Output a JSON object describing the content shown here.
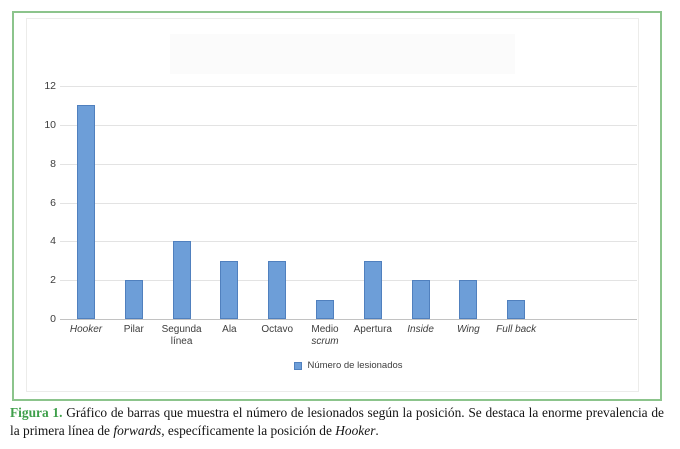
{
  "chart_data": {
    "type": "bar",
    "title": "",
    "categories": [
      "Hooker",
      "Pilar",
      "Segunda línea",
      "Ala",
      "Octavo",
      "Medio scrum",
      "Apertura",
      "Inside",
      "Wing",
      "Full back"
    ],
    "values": [
      11,
      2,
      4,
      3,
      3,
      1,
      3,
      2,
      2,
      1
    ],
    "xlabel": "",
    "ylabel": "",
    "ylim": [
      0,
      12
    ],
    "yticks": [
      0,
      2,
      4,
      6,
      8,
      10,
      12
    ],
    "grid": true,
    "legend_position": "bottom",
    "legend": [
      {
        "label": "Número de lesionados",
        "color": "#6D9ED8"
      }
    ],
    "category_labels": [
      {
        "lines": [
          {
            "text": "Hooker",
            "italic": true
          }
        ]
      },
      {
        "lines": [
          {
            "text": "Pilar",
            "italic": false
          }
        ]
      },
      {
        "lines": [
          {
            "text": "Segunda",
            "italic": false
          },
          {
            "text": "línea",
            "italic": false
          }
        ]
      },
      {
        "lines": [
          {
            "text": "Ala",
            "italic": false
          }
        ]
      },
      {
        "lines": [
          {
            "text": "Octavo",
            "italic": false
          }
        ]
      },
      {
        "lines": [
          {
            "text": "Medio",
            "italic": false
          },
          {
            "text": "scrum",
            "italic": true
          }
        ]
      },
      {
        "lines": [
          {
            "text": "Apertura",
            "italic": false
          }
        ]
      },
      {
        "lines": [
          {
            "text": "Inside",
            "italic": true
          }
        ]
      },
      {
        "lines": [
          {
            "text": "Wing",
            "italic": true
          }
        ]
      },
      {
        "lines": [
          {
            "text": "Full back",
            "italic": true
          }
        ]
      }
    ],
    "colors": {
      "bar_fill": "#6D9ED8",
      "bar_border": "#5080BE",
      "gridline": "#E3E3E3",
      "axis_line": "#C2C2C2",
      "tick_text": "#3D3D3D",
      "frame_green": "#8CC48C",
      "caption_green": "#3E9F4A"
    }
  },
  "caption": {
    "parts": [
      {
        "text": "Figura 1.",
        "style": "label"
      },
      {
        "text": " Gráfico de barras que muestra el número de lesionados según la posición. Se destaca la enorme prevalencia de la primera línea de ",
        "style": "normal"
      },
      {
        "text": "forwards",
        "style": "italic"
      },
      {
        "text": ", específicamente la posición de ",
        "style": "normal"
      },
      {
        "text": "Hooker",
        "style": "italic"
      },
      {
        "text": ".",
        "style": "normal"
      }
    ]
  }
}
